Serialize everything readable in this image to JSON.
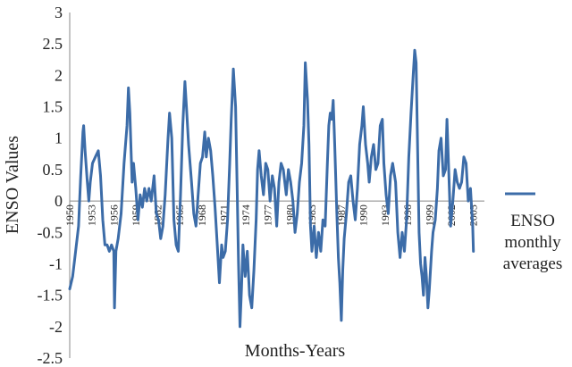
{
  "chart_data": {
    "type": "line",
    "title": "",
    "xlabel": "Months-Years",
    "ylabel": "ENSO Values",
    "ylim": [
      -2.5,
      3
    ],
    "xlim": [
      1950,
      2006.5
    ],
    "yticks": [
      "3",
      "2.5",
      "2",
      "1.5",
      "1",
      "0.5",
      "0",
      "-0.5",
      "-1",
      "-1.5",
      "-2",
      "-2.5"
    ],
    "xticks": [
      "1950",
      "1953",
      "1956",
      "1959",
      "1962",
      "1965",
      "1968",
      "1971",
      "1974",
      "1977",
      "1980",
      "1983",
      "1987",
      "1990",
      "1993",
      "1996",
      "1999",
      "2002",
      "2005"
    ],
    "grid": false,
    "legend_position": "right",
    "series": [
      {
        "name": "ENSO monthly averages",
        "color": "#3c6ca8",
        "points": [
          [
            1950.0,
            -1.4
          ],
          [
            1950.4,
            -1.2
          ],
          [
            1950.8,
            -0.8
          ],
          [
            1951.2,
            -0.4
          ],
          [
            1951.5,
            0.4
          ],
          [
            1951.8,
            1.1
          ],
          [
            1951.9,
            1.2
          ],
          [
            1952.1,
            0.8
          ],
          [
            1952.4,
            0.3
          ],
          [
            1952.6,
            0.0
          ],
          [
            1952.8,
            0.3
          ],
          [
            1953.1,
            0.6
          ],
          [
            1953.5,
            0.7
          ],
          [
            1953.9,
            0.8
          ],
          [
            1954.2,
            0.4
          ],
          [
            1954.5,
            -0.3
          ],
          [
            1954.8,
            -0.7
          ],
          [
            1955.1,
            -0.7
          ],
          [
            1955.4,
            -0.8
          ],
          [
            1955.7,
            -0.7
          ],
          [
            1956.0,
            -0.8
          ],
          [
            1956.1,
            -1.7
          ],
          [
            1956.3,
            -0.8
          ],
          [
            1956.6,
            -0.6
          ],
          [
            1957.0,
            -0.2
          ],
          [
            1957.4,
            0.6
          ],
          [
            1957.8,
            1.2
          ],
          [
            1958.0,
            1.8
          ],
          [
            1958.2,
            1.4
          ],
          [
            1958.5,
            0.3
          ],
          [
            1958.7,
            0.6
          ],
          [
            1959.0,
            0.2
          ],
          [
            1959.3,
            -0.3
          ],
          [
            1959.6,
            0.1
          ],
          [
            1959.9,
            -0.1
          ],
          [
            1960.2,
            0.2
          ],
          [
            1960.5,
            0.0
          ],
          [
            1960.8,
            0.2
          ],
          [
            1961.1,
            0.0
          ],
          [
            1961.5,
            0.4
          ],
          [
            1961.8,
            -0.2
          ],
          [
            1962.1,
            -0.3
          ],
          [
            1962.4,
            -0.6
          ],
          [
            1962.7,
            -0.4
          ],
          [
            1963.0,
            0.1
          ],
          [
            1963.4,
            1.0
          ],
          [
            1963.6,
            1.4
          ],
          [
            1963.9,
            1.0
          ],
          [
            1964.2,
            -0.3
          ],
          [
            1964.5,
            -0.7
          ],
          [
            1964.8,
            -0.8
          ],
          [
            1965.1,
            0.1
          ],
          [
            1965.4,
            1.2
          ],
          [
            1965.7,
            1.9
          ],
          [
            1965.9,
            1.5
          ],
          [
            1966.2,
            0.9
          ],
          [
            1966.6,
            0.3
          ],
          [
            1966.9,
            -0.2
          ],
          [
            1967.2,
            -0.4
          ],
          [
            1967.5,
            0.1
          ],
          [
            1967.8,
            0.6
          ],
          [
            1968.1,
            0.7
          ],
          [
            1968.4,
            1.1
          ],
          [
            1968.6,
            0.7
          ],
          [
            1968.9,
            1.0
          ],
          [
            1969.2,
            0.8
          ],
          [
            1969.5,
            0.4
          ],
          [
            1969.8,
            -0.1
          ],
          [
            1970.1,
            -0.7
          ],
          [
            1970.4,
            -1.3
          ],
          [
            1970.7,
            -0.7
          ],
          [
            1970.9,
            -0.9
          ],
          [
            1971.2,
            -0.8
          ],
          [
            1971.5,
            -0.3
          ],
          [
            1971.8,
            0.6
          ],
          [
            1972.0,
            1.3
          ],
          [
            1972.3,
            2.1
          ],
          [
            1972.6,
            1.5
          ],
          [
            1972.8,
            0.3
          ],
          [
            1973.0,
            -1.0
          ],
          [
            1973.2,
            -2.0
          ],
          [
            1973.4,
            -1.4
          ],
          [
            1973.6,
            -0.7
          ],
          [
            1973.9,
            -1.2
          ],
          [
            1974.2,
            -0.8
          ],
          [
            1974.5,
            -1.5
          ],
          [
            1974.8,
            -1.7
          ],
          [
            1975.1,
            -1.1
          ],
          [
            1975.4,
            -0.3
          ],
          [
            1975.6,
            0.5
          ],
          [
            1975.8,
            0.8
          ],
          [
            1976.1,
            0.4
          ],
          [
            1976.4,
            0.1
          ],
          [
            1976.7,
            0.6
          ],
          [
            1977.0,
            0.5
          ],
          [
            1977.3,
            0.0
          ],
          [
            1977.6,
            0.4
          ],
          [
            1977.9,
            0.2
          ],
          [
            1978.2,
            -0.4
          ],
          [
            1978.5,
            0.3
          ],
          [
            1978.8,
            0.6
          ],
          [
            1979.1,
            0.5
          ],
          [
            1979.5,
            0.1
          ],
          [
            1979.8,
            0.5
          ],
          [
            1980.1,
            0.3
          ],
          [
            1980.4,
            0.0
          ],
          [
            1980.7,
            -0.5
          ],
          [
            1981.0,
            -0.2
          ],
          [
            1981.3,
            0.3
          ],
          [
            1981.6,
            0.6
          ],
          [
            1981.9,
            1.2
          ],
          [
            1982.1,
            2.2
          ],
          [
            1982.4,
            1.6
          ],
          [
            1982.6,
            0.9
          ],
          [
            1982.8,
            -0.4
          ],
          [
            1983.0,
            -0.8
          ],
          [
            1983.3,
            -0.4
          ],
          [
            1983.6,
            -0.9
          ],
          [
            1983.9,
            -0.5
          ],
          [
            1984.2,
            -0.8
          ],
          [
            1984.5,
            -0.3
          ],
          [
            1984.8,
            -0.4
          ],
          [
            1985.1,
            0.6
          ],
          [
            1985.3,
            1.2
          ],
          [
            1985.5,
            1.4
          ],
          [
            1985.7,
            1.3
          ],
          [
            1985.9,
            1.6
          ],
          [
            1986.1,
            0.9
          ],
          [
            1986.4,
            -0.2
          ],
          [
            1986.6,
            -0.9
          ],
          [
            1986.8,
            -1.3
          ],
          [
            1987.0,
            -1.9
          ],
          [
            1987.2,
            -1.1
          ],
          [
            1987.4,
            -0.6
          ],
          [
            1987.7,
            -0.2
          ],
          [
            1988.0,
            0.3
          ],
          [
            1988.3,
            0.4
          ],
          [
            1988.6,
            0.0
          ],
          [
            1988.9,
            -0.3
          ],
          [
            1989.2,
            0.2
          ],
          [
            1989.5,
            0.9
          ],
          [
            1989.8,
            1.2
          ],
          [
            1990.0,
            1.5
          ],
          [
            1990.3,
            0.9
          ],
          [
            1990.6,
            0.6
          ],
          [
            1990.8,
            0.3
          ],
          [
            1991.1,
            0.7
          ],
          [
            1991.4,
            0.9
          ],
          [
            1991.7,
            0.5
          ],
          [
            1992.0,
            0.6
          ],
          [
            1992.3,
            1.2
          ],
          [
            1992.6,
            1.3
          ],
          [
            1992.8,
            0.6
          ],
          [
            1993.1,
            0.1
          ],
          [
            1993.4,
            -0.2
          ],
          [
            1993.7,
            0.4
          ],
          [
            1994.0,
            0.6
          ],
          [
            1994.4,
            0.3
          ],
          [
            1994.7,
            -0.5
          ],
          [
            1995.0,
            -0.9
          ],
          [
            1995.3,
            -0.5
          ],
          [
            1995.6,
            -0.8
          ],
          [
            1995.9,
            -0.3
          ],
          [
            1996.2,
            0.7
          ],
          [
            1996.5,
            1.4
          ],
          [
            1996.8,
            2.0
          ],
          [
            1997.0,
            2.4
          ],
          [
            1997.2,
            2.2
          ],
          [
            1997.4,
            0.8
          ],
          [
            1997.6,
            -0.5
          ],
          [
            1997.8,
            -1.0
          ],
          [
            1998.0,
            -1.2
          ],
          [
            1998.2,
            -1.5
          ],
          [
            1998.4,
            -0.9
          ],
          [
            1998.6,
            -1.2
          ],
          [
            1998.8,
            -1.7
          ],
          [
            1999.0,
            -1.4
          ],
          [
            1999.3,
            -0.8
          ],
          [
            1999.5,
            -0.5
          ],
          [
            1999.8,
            -0.3
          ],
          [
            2000.1,
            0.2
          ],
          [
            2000.3,
            0.8
          ],
          [
            2000.6,
            1.0
          ],
          [
            2000.9,
            0.4
          ],
          [
            2001.2,
            0.5
          ],
          [
            2001.4,
            1.3
          ],
          [
            2001.6,
            0.6
          ],
          [
            2001.9,
            -0.4
          ],
          [
            2002.2,
            0.0
          ],
          [
            2002.5,
            0.5
          ],
          [
            2002.8,
            0.3
          ],
          [
            2003.1,
            0.2
          ],
          [
            2003.4,
            0.3
          ],
          [
            2003.7,
            0.7
          ],
          [
            2004.0,
            0.6
          ],
          [
            2004.3,
            0.0
          ],
          [
            2004.6,
            0.2
          ],
          [
            2004.9,
            -0.4
          ],
          [
            2005.0,
            -0.8
          ]
        ]
      }
    ]
  }
}
